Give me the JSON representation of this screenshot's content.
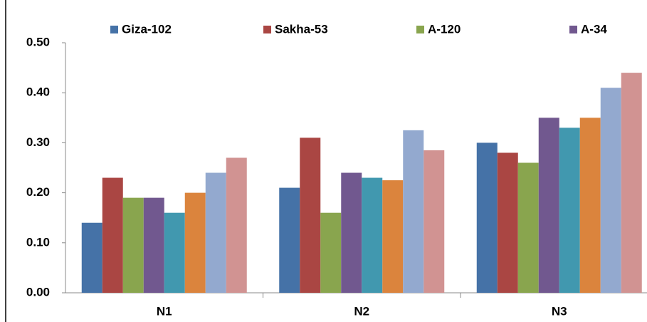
{
  "chart_data": {
    "type": "bar",
    "categories": [
      "N1",
      "N2",
      "N3"
    ],
    "series": [
      {
        "name": "Giza-102",
        "color": "#4572a7",
        "values": [
          0.14,
          0.21,
          0.3
        ]
      },
      {
        "name": "Sakha-53",
        "color": "#aa4643",
        "values": [
          0.23,
          0.31,
          0.28
        ]
      },
      {
        "name": "A-120",
        "color": "#89a54e",
        "values": [
          0.19,
          0.16,
          0.26
        ]
      },
      {
        "name": "A-34",
        "color": "#71588f",
        "values": [
          0.19,
          0.24,
          0.35
        ]
      },
      {
        "color": "#4198af",
        "values": [
          0.16,
          0.23,
          0.33
        ]
      },
      {
        "color": "#db843d",
        "values": [
          0.2,
          0.225,
          0.35
        ]
      },
      {
        "color": "#93a9cf",
        "values": [
          0.24,
          0.325,
          0.41
        ]
      },
      {
        "color": "#d19392",
        "values": [
          0.27,
          0.285,
          0.44
        ]
      }
    ],
    "ylim": [
      0,
      0.5
    ],
    "yticks": [
      {
        "value": 0,
        "label": "0.00"
      },
      {
        "value": 0.1,
        "label": "0.10"
      },
      {
        "value": 0.2,
        "label": "0.20"
      },
      {
        "value": 0.3,
        "label": "0.30"
      },
      {
        "value": 0.4,
        "label": "0.40"
      },
      {
        "value": 0.5,
        "label": "0.50"
      }
    ],
    "legend": "top"
  }
}
